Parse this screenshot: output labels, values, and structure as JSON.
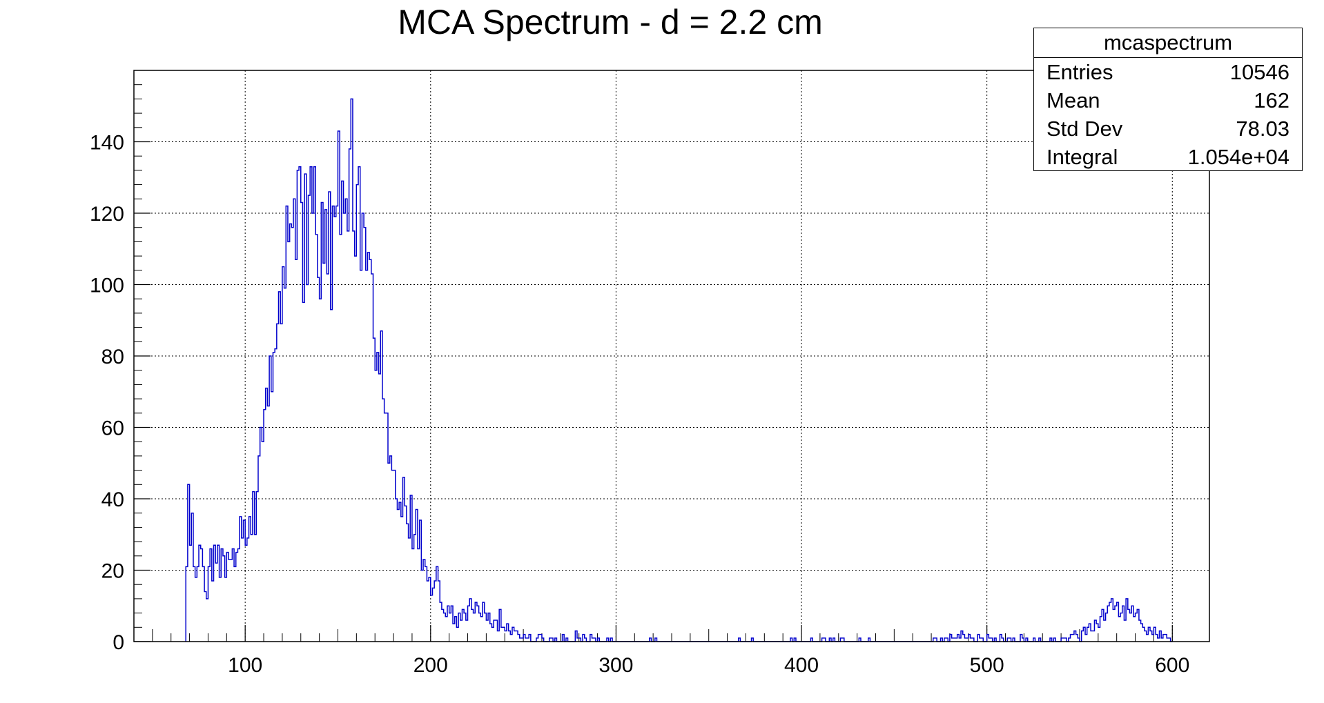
{
  "chart_data": {
    "type": "histogram",
    "title": "MCA Spectrum - d = 2.2 cm",
    "xlabel": "",
    "ylabel": "",
    "xlim": [
      40,
      620
    ],
    "ylim": [
      0,
      160
    ],
    "x_ticks": [
      100,
      200,
      300,
      400,
      500,
      600
    ],
    "y_ticks": [
      0,
      20,
      40,
      60,
      80,
      100,
      120,
      140
    ],
    "grid": true,
    "line_color": "#0000cc",
    "bin_start": 68,
    "bin_width": 1,
    "counts": [
      21,
      44,
      27,
      36,
      21,
      18,
      21,
      27,
      26,
      21,
      14,
      12,
      21,
      26,
      17,
      27,
      22,
      27,
      18,
      26,
      24,
      18,
      25,
      23,
      23,
      26,
      21,
      25,
      26,
      35,
      29,
      34,
      27,
      29,
      35,
      30,
      42,
      30,
      42,
      52,
      60,
      56,
      65,
      71,
      66,
      80,
      70,
      81,
      82,
      89,
      98,
      89,
      105,
      99,
      122,
      112,
      117,
      116,
      124,
      107,
      132,
      133,
      123,
      95,
      131,
      100,
      125,
      133,
      120,
      133,
      114,
      102,
      96,
      123,
      106,
      121,
      103,
      126,
      93,
      122,
      119,
      122,
      143,
      114,
      129,
      120,
      124,
      115,
      138,
      152,
      115,
      108,
      128,
      133,
      104,
      120,
      116,
      104,
      109,
      107,
      103,
      85,
      76,
      81,
      75,
      87,
      68,
      64,
      64,
      50,
      52,
      48,
      48,
      40,
      37,
      39,
      35,
      46,
      38,
      33,
      29,
      41,
      26,
      30,
      37,
      26,
      34,
      20,
      23,
      21,
      17,
      18,
      13,
      15,
      17,
      21,
      17,
      11,
      9,
      8,
      7,
      10,
      8,
      10,
      5,
      7,
      4,
      8,
      6,
      9,
      8,
      6,
      10,
      12,
      9,
      8,
      11,
      10,
      8,
      7,
      11,
      8,
      6,
      8,
      5,
      4,
      6,
      6,
      3,
      9,
      4,
      4,
      3,
      5,
      3,
      2,
      4,
      3,
      3,
      2,
      1,
      1,
      2,
      1,
      1,
      2,
      0,
      0,
      0,
      1,
      2,
      2,
      1,
      0,
      0,
      0,
      1,
      1,
      0,
      1,
      0,
      0,
      0,
      2,
      0,
      1,
      0,
      0,
      0,
      0,
      3,
      1,
      1,
      0,
      2,
      1,
      0,
      0,
      2,
      1,
      1,
      0,
      1,
      0,
      0,
      0,
      0,
      1,
      0,
      1,
      0,
      0,
      0,
      0,
      0,
      0,
      0,
      0,
      0,
      0,
      0,
      0,
      0,
      0,
      0,
      0,
      0,
      0,
      0,
      0,
      1,
      0,
      0,
      1,
      0,
      0,
      0,
      0,
      0,
      0,
      0,
      0,
      0,
      0,
      0,
      0,
      0,
      0,
      0,
      0,
      0,
      0,
      0,
      0,
      0,
      0,
      0,
      0,
      0,
      0,
      0,
      0,
      0,
      0,
      0,
      0,
      0,
      0,
      0,
      0,
      0,
      0,
      0,
      0,
      0,
      0,
      0,
      0,
      1,
      0,
      0,
      0,
      0,
      0,
      0,
      1,
      0,
      0,
      0,
      0,
      0,
      0,
      0,
      0,
      0,
      0,
      0,
      0,
      0,
      0,
      0,
      0,
      0,
      0,
      0,
      0,
      1,
      0,
      1,
      0,
      0,
      0,
      0,
      0,
      0,
      0,
      0,
      1,
      0,
      0,
      0,
      0,
      0,
      1,
      1,
      0,
      0,
      1,
      0,
      1,
      0,
      0,
      0,
      1,
      1,
      0,
      0,
      0,
      0,
      0,
      0,
      0,
      0,
      1,
      0,
      0,
      0,
      0,
      1,
      0,
      0,
      0,
      0,
      0,
      0,
      0,
      0,
      0,
      0,
      0,
      0,
      0,
      0,
      0,
      0,
      0,
      0,
      0,
      0,
      0,
      0,
      0,
      0,
      0,
      0,
      0,
      0,
      0,
      0,
      0,
      0,
      0,
      0,
      1,
      1,
      0,
      0,
      1,
      0,
      1,
      1,
      0,
      2,
      1,
      1,
      1,
      2,
      1,
      3,
      2,
      1,
      1,
      2,
      1,
      1,
      0,
      0,
      2,
      1,
      1,
      0,
      0,
      2,
      1,
      1,
      0,
      1,
      0,
      0,
      2,
      1,
      0,
      0,
      1,
      1,
      0,
      1,
      0,
      0,
      0,
      2,
      1,
      0,
      1,
      0,
      0,
      0,
      1,
      0,
      0,
      1,
      0,
      0,
      0,
      0,
      0,
      1,
      0,
      1,
      0,
      0,
      0,
      1,
      1,
      1,
      0,
      1,
      2,
      2,
      3,
      2,
      1,
      0,
      3,
      4,
      2,
      4,
      5,
      3,
      3,
      6,
      5,
      4,
      7,
      9,
      6,
      8,
      10,
      11,
      12,
      9,
      10,
      11,
      7,
      8,
      10,
      6,
      12,
      9,
      8,
      10,
      7,
      8,
      9,
      6,
      5,
      4,
      3,
      2,
      4,
      3,
      2,
      4,
      2,
      1,
      3,
      1,
      2,
      2,
      1,
      1,
      0
    ]
  },
  "stats": {
    "title": "mcaspectrum",
    "rows": [
      {
        "label": "Entries",
        "value": "10546"
      },
      {
        "label": "Mean",
        "value": "162"
      },
      {
        "label": "Std Dev",
        "value": "78.03"
      },
      {
        "label": "Integral",
        "value": "1.054e+04"
      }
    ]
  }
}
